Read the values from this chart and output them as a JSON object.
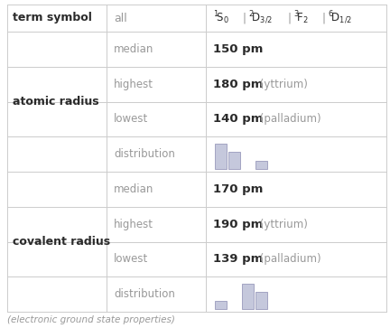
{
  "dist1_bars": [
    3,
    2,
    0,
    1
  ],
  "dist2_bars": [
    1,
    0,
    3,
    2
  ],
  "bar_color": "#c5c8dc",
  "bar_edge_color": "#9999bb",
  "background_color": "#ffffff",
  "text_color_dark": "#2a2a2a",
  "text_color_medium": "#555555",
  "text_color_light": "#999999",
  "line_color": "#cccccc",
  "footer": "(electronic ground state properties)"
}
